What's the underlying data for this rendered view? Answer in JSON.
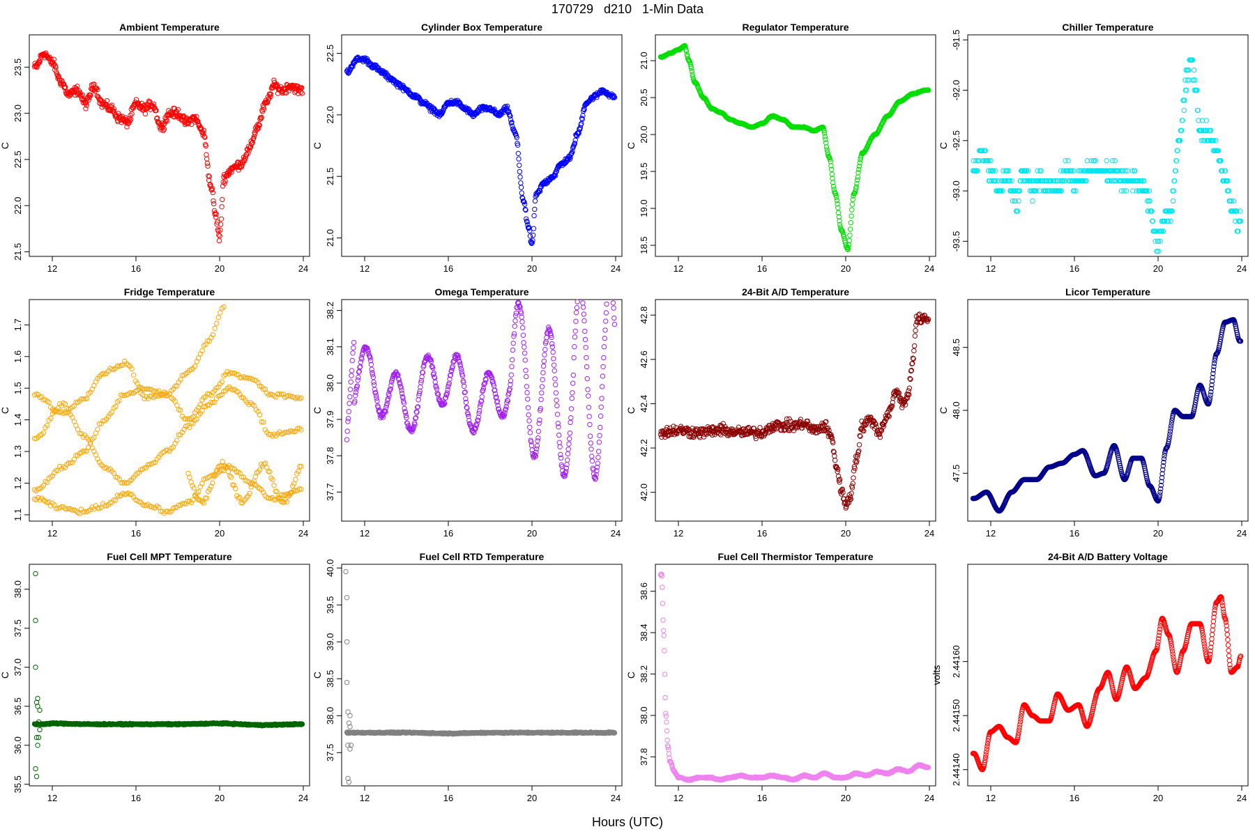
{
  "header": {
    "title": "170729   d210   1-Min Data",
    "xlabel": "Hours (UTC)"
  },
  "chart_data": [
    {
      "type": "scatter",
      "title": "Ambient Temperature",
      "ylabel": "C",
      "color": "#ff0000",
      "xlim": [
        10.9,
        24.3
      ],
      "ylim": [
        21.45,
        23.85
      ],
      "xticks": [
        12,
        16,
        20,
        24
      ],
      "xtick_labels": [
        "12",
        "16",
        "20",
        "24"
      ],
      "yticks": [
        21.5,
        22.0,
        22.5,
        23.0,
        23.5
      ],
      "ytick_labels": [
        "21.5",
        "22.0",
        "22.5",
        "23.0",
        "23.5"
      ],
      "x": [
        11.2,
        11.6,
        12.0,
        12.4,
        12.8,
        13.2,
        13.6,
        14.0,
        14.4,
        14.8,
        15.2,
        15.6,
        16.0,
        16.4,
        16.8,
        17.2,
        17.6,
        18.0,
        18.4,
        18.8,
        19.2,
        19.6,
        19.8,
        20.0,
        20.2,
        20.6,
        21.0,
        21.4,
        21.8,
        22.2,
        22.6,
        23.0,
        23.4,
        23.8
      ],
      "y": [
        23.5,
        23.65,
        23.55,
        23.35,
        23.2,
        23.25,
        23.1,
        23.3,
        23.1,
        23.05,
        22.95,
        22.9,
        23.1,
        23.05,
        23.1,
        22.85,
        23.0,
        23.0,
        22.9,
        22.95,
        22.8,
        22.2,
        21.9,
        21.65,
        22.3,
        22.4,
        22.45,
        22.6,
        22.85,
        23.1,
        23.3,
        23.25,
        23.3,
        23.25
      ],
      "noise": 0.06
    },
    {
      "type": "scatter",
      "title": "Cylinder Box Temperature",
      "ylabel": "C",
      "color": "#0000ff",
      "xlim": [
        10.9,
        24.3
      ],
      "ylim": [
        20.85,
        22.65
      ],
      "xticks": [
        12,
        16,
        20,
        24
      ],
      "xtick_labels": [
        "12",
        "16",
        "20",
        "24"
      ],
      "yticks": [
        21.0,
        21.5,
        22.0,
        22.5
      ],
      "ytick_labels": [
        "21.0",
        "21.5",
        "22.0",
        "22.5"
      ],
      "x": [
        11.2,
        11.6,
        12.0,
        12.4,
        12.8,
        13.2,
        13.6,
        14.0,
        14.4,
        14.8,
        15.2,
        15.6,
        16.0,
        16.4,
        16.8,
        17.2,
        17.6,
        18.0,
        18.4,
        18.8,
        19.2,
        19.6,
        19.8,
        20.0,
        20.2,
        20.6,
        21.0,
        21.4,
        21.8,
        22.2,
        22.6,
        23.0,
        23.4,
        23.8
      ],
      "y": [
        22.35,
        22.45,
        22.45,
        22.4,
        22.35,
        22.3,
        22.25,
        22.2,
        22.15,
        22.1,
        22.05,
        22.0,
        22.1,
        22.1,
        22.05,
        22.0,
        22.05,
        22.05,
        22.0,
        22.05,
        21.85,
        21.3,
        21.1,
        20.95,
        21.35,
        21.45,
        21.5,
        21.6,
        21.65,
        21.85,
        22.1,
        22.15,
        22.2,
        22.15
      ],
      "noise": 0.025
    },
    {
      "type": "scatter",
      "title": "Regulator Temperature",
      "ylabel": "C",
      "color": "#00dd00",
      "xlim": [
        10.9,
        24.3
      ],
      "ylim": [
        18.35,
        21.35
      ],
      "xticks": [
        12,
        16,
        20,
        24
      ],
      "xtick_labels": [
        "12",
        "16",
        "20",
        "24"
      ],
      "yticks": [
        18.5,
        19.0,
        19.5,
        20.0,
        20.5,
        21.0
      ],
      "ytick_labels": [
        "18.5",
        "19.0",
        "19.5",
        "20.0",
        "20.5",
        "21.0"
      ],
      "x": [
        11.2,
        11.6,
        12.0,
        12.3,
        12.5,
        12.8,
        13.2,
        13.6,
        14.0,
        14.5,
        15.0,
        15.5,
        16.0,
        16.5,
        17.0,
        17.5,
        18.0,
        18.5,
        18.9,
        19.2,
        19.5,
        19.8,
        20.1,
        20.4,
        20.8,
        21.4,
        22.0,
        22.6,
        23.2,
        23.8
      ],
      "y": [
        21.05,
        21.1,
        21.15,
        21.2,
        21.0,
        20.7,
        20.5,
        20.35,
        20.3,
        20.2,
        20.15,
        20.1,
        20.15,
        20.25,
        20.2,
        20.1,
        20.1,
        20.05,
        20.1,
        19.7,
        19.2,
        18.7,
        18.45,
        19.2,
        19.75,
        20.0,
        20.25,
        20.45,
        20.55,
        20.6
      ],
      "noise": 0.008
    },
    {
      "type": "scatter",
      "title": "Chiller Temperature",
      "ylabel": "C",
      "color": "#00e5ee",
      "xlim": [
        10.9,
        24.3
      ],
      "ylim": [
        -93.65,
        -91.45
      ],
      "xticks": [
        12,
        16,
        20,
        24
      ],
      "xtick_labels": [
        "12",
        "16",
        "20",
        "24"
      ],
      "yticks": [
        -93.5,
        -93.0,
        -92.5,
        -92.0,
        -91.5
      ],
      "ytick_labels": [
        "-93.5",
        "-93.0",
        "-92.5",
        "-92.0",
        "-91.5"
      ],
      "x": [
        11.2,
        11.6,
        12.0,
        12.4,
        12.8,
        13.2,
        13.6,
        14.0,
        14.4,
        14.8,
        15.2,
        15.6,
        16.0,
        16.4,
        16.8,
        17.2,
        17.6,
        18.0,
        18.4,
        18.8,
        19.2,
        19.6,
        19.8,
        20.0,
        20.2,
        20.6,
        21.0,
        21.4,
        21.6,
        21.8,
        22.0,
        22.4,
        22.8,
        23.2,
        23.6,
        23.8
      ],
      "y": [
        -92.8,
        -92.6,
        -92.8,
        -93.0,
        -92.85,
        -93.1,
        -92.8,
        -93.0,
        -92.9,
        -92.95,
        -93.0,
        -92.8,
        -92.9,
        -92.85,
        -92.75,
        -92.8,
        -92.8,
        -92.85,
        -92.9,
        -92.9,
        -92.95,
        -93.1,
        -93.4,
        -93.5,
        -93.3,
        -93.2,
        -92.5,
        -91.9,
        -91.7,
        -92.0,
        -92.4,
        -92.4,
        -92.6,
        -92.9,
        -93.2,
        -93.3
      ],
      "noise": 0.12,
      "step": 0.1
    },
    {
      "type": "scatter",
      "title": "Fridge Temperature",
      "ylabel": "C",
      "color": "#ffa500",
      "xlim": [
        10.9,
        24.3
      ],
      "ylim": [
        1.08,
        1.78
      ],
      "xticks": [
        12,
        16,
        20,
        24
      ],
      "xtick_labels": [
        "12",
        "16",
        "20",
        "24"
      ],
      "yticks": [
        1.1,
        1.2,
        1.3,
        1.4,
        1.5,
        1.6,
        1.7
      ],
      "ytick_labels": [
        "1.1",
        "1.2",
        "1.3",
        "1.4",
        "1.5",
        "1.6",
        "1.7"
      ],
      "kind": "fridge",
      "noise": 0.008
    },
    {
      "type": "scatter",
      "title": "Omega Temperature",
      "ylabel": "C",
      "color": "#a020f0",
      "xlim": [
        10.9,
        24.3
      ],
      "ylim": [
        37.62,
        38.23
      ],
      "xticks": [
        12,
        16,
        20,
        24
      ],
      "xtick_labels": [
        "12",
        "16",
        "20",
        "24"
      ],
      "yticks": [
        37.7,
        37.8,
        37.9,
        38.0,
        38.1,
        38.2
      ],
      "ytick_labels": [
        "37.7",
        "37.8",
        "37.9",
        "38.0",
        "38.1",
        "38.2"
      ],
      "kind": "omega",
      "noise": 0.008
    },
    {
      "type": "scatter",
      "title": "24-Bit A/D Temperature",
      "ylabel": "C",
      "color": "#8b0000",
      "xlim": [
        10.9,
        24.3
      ],
      "ylim": [
        41.87,
        42.87
      ],
      "xticks": [
        12,
        16,
        20,
        24
      ],
      "xtick_labels": [
        "12",
        "16",
        "20",
        "24"
      ],
      "yticks": [
        42.0,
        42.2,
        42.4,
        42.6,
        42.8
      ],
      "ytick_labels": [
        "42.0",
        "42.2",
        "42.4",
        "42.6",
        "42.8"
      ],
      "x": [
        11.2,
        12.0,
        13.0,
        14.0,
        15.0,
        16.0,
        16.5,
        17.0,
        17.5,
        18.0,
        18.5,
        19.0,
        19.3,
        19.6,
        19.8,
        20.0,
        20.2,
        20.5,
        20.8,
        21.2,
        21.6,
        22.0,
        22.4,
        22.8,
        23.0,
        23.2,
        23.4,
        23.6,
        23.8
      ],
      "y": [
        42.27,
        42.28,
        42.27,
        42.28,
        42.27,
        42.27,
        42.3,
        42.3,
        42.3,
        42.31,
        42.28,
        42.3,
        42.25,
        42.1,
        42.0,
        41.95,
        41.97,
        42.15,
        42.3,
        42.33,
        42.27,
        42.35,
        42.45,
        42.4,
        42.45,
        42.6,
        42.78,
        42.78,
        42.78
      ],
      "noise": 0.03
    },
    {
      "type": "scatter",
      "title": "Licor Temperature",
      "ylabel": "C",
      "color": "#00008b",
      "xlim": [
        10.9,
        24.3
      ],
      "ylim": [
        47.12,
        48.88
      ],
      "xticks": [
        12,
        16,
        20,
        24
      ],
      "xtick_labels": [
        "12",
        "16",
        "20",
        "24"
      ],
      "yticks": [
        47.5,
        48.0,
        48.5
      ],
      "ytick_labels": [
        "47.5",
        "48.0",
        "48.5"
      ],
      "x": [
        11.2,
        11.8,
        12.4,
        13.0,
        13.6,
        14.2,
        14.8,
        15.4,
        16.0,
        16.4,
        17.0,
        17.4,
        17.9,
        18.4,
        18.8,
        19.2,
        19.6,
        20.0,
        20.4,
        20.8,
        21.2,
        21.6,
        22.0,
        22.4,
        22.8,
        23.2,
        23.6,
        23.9
      ],
      "y": [
        47.3,
        47.35,
        47.2,
        47.35,
        47.45,
        47.45,
        47.55,
        47.58,
        47.65,
        47.68,
        47.48,
        47.5,
        47.72,
        47.45,
        47.62,
        47.62,
        47.4,
        47.28,
        47.7,
        48.0,
        47.95,
        47.95,
        48.2,
        48.05,
        48.45,
        48.7,
        48.72,
        48.55
      ],
      "noise": 0,
      "dense": true
    },
    {
      "type": "scatter",
      "title": "Fuel Cell MPT Temperature",
      "ylabel": "C",
      "color": "#006400",
      "xlim": [
        10.9,
        24.3
      ],
      "ylim": [
        35.48,
        38.32
      ],
      "xticks": [
        12,
        16,
        20,
        24
      ],
      "xtick_labels": [
        "12",
        "16",
        "20",
        "24"
      ],
      "yticks": [
        35.5,
        36.0,
        36.5,
        37.0,
        37.5,
        38.0
      ],
      "ytick_labels": [
        "35.5",
        "36.0",
        "36.5",
        "37.0",
        "37.5",
        "38.0"
      ],
      "x": [
        11.5,
        12.0,
        14.0,
        16.0,
        18.0,
        20.0,
        22.0,
        23.9
      ],
      "y": [
        36.27,
        36.28,
        36.27,
        36.27,
        36.27,
        36.28,
        36.26,
        36.27
      ],
      "outliers": [
        [
          11.2,
          38.2
        ],
        [
          11.2,
          37.6
        ],
        [
          11.2,
          37.0
        ],
        [
          11.25,
          36.55
        ],
        [
          11.3,
          36.6
        ],
        [
          11.3,
          36.5
        ],
        [
          11.25,
          36.1
        ],
        [
          11.3,
          36.0
        ],
        [
          11.2,
          35.7
        ],
        [
          11.25,
          35.6
        ],
        [
          11.35,
          36.3
        ],
        [
          11.4,
          36.45
        ],
        [
          11.4,
          36.2
        ],
        [
          11.35,
          36.1
        ]
      ],
      "noise": 0.01,
      "dense": true
    },
    {
      "type": "scatter",
      "title": "Fuel Cell RTD Temperature",
      "ylabel": "C",
      "color": "#808080",
      "xlim": [
        10.9,
        24.3
      ],
      "ylim": [
        37.05,
        40.05
      ],
      "xticks": [
        12,
        16,
        20,
        24
      ],
      "xtick_labels": [
        "12",
        "16",
        "20",
        "24"
      ],
      "yticks": [
        37.5,
        38.0,
        38.5,
        39.0,
        39.5,
        40.0
      ],
      "ytick_labels": [
        "37.5",
        "38.0",
        "38.5",
        "39.0",
        "39.5",
        "40.0"
      ],
      "x": [
        11.5,
        12.0,
        14.0,
        16.0,
        18.0,
        20.0,
        22.0,
        23.9
      ],
      "y": [
        37.77,
        37.77,
        37.77,
        37.76,
        37.77,
        37.77,
        37.77,
        37.77
      ],
      "outliers": [
        [
          11.1,
          39.95
        ],
        [
          11.15,
          39.6
        ],
        [
          11.15,
          39.0
        ],
        [
          11.15,
          38.45
        ],
        [
          11.2,
          38.05
        ],
        [
          11.3,
          38.0
        ],
        [
          11.25,
          37.9
        ],
        [
          11.2,
          37.6
        ],
        [
          11.3,
          37.55
        ],
        [
          11.35,
          37.6
        ],
        [
          11.2,
          37.15
        ],
        [
          11.25,
          37.1
        ],
        [
          11.3,
          37.85
        ]
      ],
      "noise": 0.01,
      "dense": true
    },
    {
      "type": "scatter",
      "title": "Fuel Cell Thermistor Temperature",
      "ylabel": "C",
      "color": "#ee82ee",
      "xlim": [
        10.9,
        24.3
      ],
      "ylim": [
        37.66,
        38.73
      ],
      "xticks": [
        12,
        16,
        20,
        24
      ],
      "xtick_labels": [
        "12",
        "16",
        "20",
        "24"
      ],
      "yticks": [
        37.8,
        38.0,
        38.2,
        38.4,
        38.6
      ],
      "ytick_labels": [
        "37.8",
        "38.0",
        "38.2",
        "38.4",
        "38.6"
      ],
      "x": [
        11.2,
        11.3,
        11.4,
        11.5,
        11.6,
        11.8,
        12.0,
        12.5,
        13.0,
        13.5,
        14.0,
        14.5,
        15.0,
        15.5,
        16.0,
        16.5,
        17.0,
        17.5,
        18.0,
        18.5,
        19.0,
        19.5,
        20.0,
        20.5,
        21.0,
        21.5,
        22.0,
        22.5,
        23.0,
        23.5,
        23.9
      ],
      "y": [
        38.68,
        38.4,
        38.0,
        37.85,
        37.78,
        37.73,
        37.7,
        37.69,
        37.7,
        37.7,
        37.69,
        37.7,
        37.71,
        37.7,
        37.7,
        37.71,
        37.7,
        37.69,
        37.71,
        37.7,
        37.72,
        37.7,
        37.7,
        37.72,
        37.71,
        37.73,
        37.72,
        37.74,
        37.73,
        37.76,
        37.75
      ],
      "noise": 0.004,
      "dense": true
    },
    {
      "type": "scatter",
      "title": "24-Bit A/D Battery Voltage",
      "ylabel": "volts",
      "color": "#ff0000",
      "xlim": [
        10.9,
        24.3
      ],
      "ylim": [
        2.44137,
        2.44178
      ],
      "xticks": [
        12,
        16,
        20,
        24
      ],
      "xtick_labels": [
        "12",
        "16",
        "20",
        "24"
      ],
      "yticks": [
        2.4414,
        2.4415,
        2.4416
      ],
      "ytick_labels": [
        "2.44140",
        "2.44150",
        "2.44160"
      ],
      "x": [
        11.2,
        11.6,
        12.0,
        12.4,
        12.8,
        13.2,
        13.6,
        14.0,
        14.4,
        14.8,
        15.2,
        15.7,
        16.2,
        16.6,
        17.2,
        17.6,
        18.0,
        18.5,
        18.9,
        19.4,
        19.9,
        20.2,
        20.5,
        20.9,
        21.2,
        21.6,
        22.0,
        22.4,
        22.8,
        23.0,
        23.2,
        23.5,
        23.8,
        23.95
      ],
      "y": [
        2.44143,
        2.4414,
        2.44147,
        2.44148,
        2.44146,
        2.44145,
        2.44152,
        2.4415,
        2.44149,
        2.44149,
        2.44154,
        2.44151,
        2.44152,
        2.44148,
        2.44155,
        2.44158,
        2.44153,
        2.44159,
        2.44155,
        2.44157,
        2.44162,
        2.44168,
        2.44165,
        2.44158,
        2.44162,
        2.44167,
        2.44167,
        2.4416,
        2.44171,
        2.44172,
        2.44168,
        2.44158,
        2.44159,
        2.44161
      ],
      "noise": 0,
      "dense": true
    }
  ]
}
